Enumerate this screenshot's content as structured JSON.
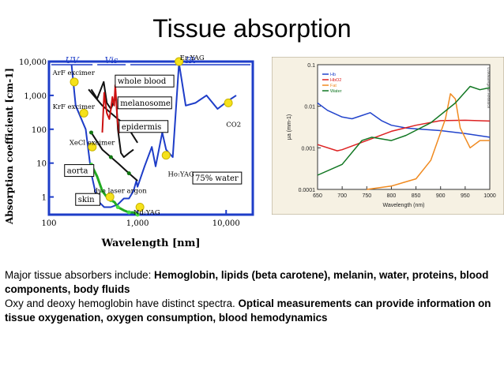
{
  "slide": {
    "title": "Tissue absorption",
    "p1_plain": "Major tissue absorbers include: ",
    "p1_bold": "Hemoglobin, lipids (beta carotene), melanin, water, proteins, blood components, body fluids",
    "p2_plain": "Oxy and deoxy hemoglobin have distinct spectra. ",
    "p2_bold": "Optical measurements can provide information on tissue oxygenation, oxygen consumption, blood hemodynamics"
  },
  "chart_data": [
    {
      "type": "line",
      "xlabel": "Wavelength [nm]",
      "ylabel": "Absorption coefficient [cm-1]",
      "xscale": "log",
      "yscale": "log",
      "xlim": [
        100,
        20000
      ],
      "ylim": [
        0.3,
        10000
      ],
      "xticks": [
        "100",
        "1,000",
        "10,000"
      ],
      "yticks": [
        "10,000",
        "1,000",
        "100",
        "10",
        "1"
      ],
      "regions": [
        "UV",
        "Vis",
        "IR"
      ],
      "labels": [
        "whole blood",
        "melanosome",
        "epidermis",
        "aorta",
        "skin",
        "75% water",
        "dye laser argon",
        "Ho:YAG",
        "Nd:YAG",
        "Er:YAG",
        "CO2",
        "ArF excimer",
        "KrF excimer",
        "XeCl excimer"
      ],
      "series": [
        {
          "name": "75% water",
          "color": "#1e3dc8",
          "x": [
            180,
            200,
            260,
            300,
            350,
            420,
            500,
            600,
            700,
            800,
            900,
            970,
            1000,
            1200,
            1450,
            1600,
            1900,
            2100,
            2500,
            2940,
            3500,
            4500,
            6000,
            8000,
            10600,
            13000
          ],
          "y": [
            8000,
            500,
            100,
            5,
            0.8,
            0.5,
            0.5,
            0.6,
            0.9,
            0.9,
            1.5,
            3,
            2,
            8,
            30,
            8,
            80,
            25,
            15,
            9000,
            500,
            600,
            1000,
            400,
            700,
            1000
          ]
        },
        {
          "name": "whole blood",
          "color": "#111111",
          "x": [
            300,
            350,
            415,
            450,
            500,
            545,
            575,
            600,
            650,
            700,
            800,
            900
          ],
          "y": [
            1500,
            800,
            2500,
            600,
            400,
            700,
            800,
            100,
            20,
            15,
            20,
            25
          ]
        },
        {
          "name": "melanosome",
          "color": "#111111",
          "x": [
            280,
            400,
            500,
            600,
            700,
            800,
            1000
          ],
          "y": [
            1500,
            500,
            300,
            200,
            150,
            100,
            40
          ]
        },
        {
          "name": "epidermis",
          "color": "#111111",
          "x": [
            300,
            400,
            500,
            600,
            800,
            1000
          ],
          "y": [
            80,
            25,
            15,
            10,
            5,
            3
          ]
        },
        {
          "name": "aorta",
          "color": "#cc1111",
          "x": [
            400,
            420,
            450,
            480,
            500,
            520,
            545,
            560,
            575,
            590,
            620,
            700
          ],
          "y": [
            80,
            1200,
            300,
            200,
            400,
            900,
            500,
            2000,
            700,
            200,
            80,
            100
          ]
        },
        {
          "name": "skin",
          "color": "#22aa22",
          "x": [
            300,
            350,
            400,
            450,
            500,
            550,
            600,
            700,
            800,
            900,
            1000
          ],
          "y": [
            9,
            4,
            1.5,
            1,
            0.8,
            0.7,
            0.5,
            0.4,
            0.35,
            0.35,
            0.3
          ]
        }
      ],
      "markers": [
        {
          "label": "ArF excimer",
          "x": 193,
          "y": 2500
        },
        {
          "label": "KrF excimer",
          "x": 248,
          "y": 300
        },
        {
          "label": "XeCl excimer",
          "x": 308,
          "y": 30
        },
        {
          "label": "argon",
          "x": 488,
          "y": 1
        },
        {
          "label": "Nd:YAG",
          "x": 1064,
          "y": 0.5
        },
        {
          "label": "Ho:YAG",
          "x": 2100,
          "y": 17
        },
        {
          "label": "Er:YAG",
          "x": 2940,
          "y": 10000
        },
        {
          "label": "CO2",
          "x": 10600,
          "y": 600
        }
      ]
    },
    {
      "type": "line",
      "xlabel": "Wavelength (nm)",
      "ylabel": "μa (mm-1)",
      "yscale": "log",
      "xlim": [
        650,
        1000
      ],
      "ylim": [
        0.0001,
        0.1
      ],
      "xticks": [
        "650",
        "700",
        "750",
        "800",
        "850",
        "900",
        "950",
        "1000"
      ],
      "yticks": [
        "0.1",
        "0.01",
        "0.001",
        "0.0001"
      ],
      "legend_position": "top-left",
      "watermark": "©2006Bergman Research",
      "series": [
        {
          "name": "Hb",
          "color": "#2244cc",
          "x": [
            650,
            670,
            700,
            720,
            740,
            757,
            780,
            800,
            830,
            860,
            900,
            950,
            1000
          ],
          "y": [
            0.012,
            0.008,
            0.0055,
            0.005,
            0.006,
            0.007,
            0.0045,
            0.0035,
            0.003,
            0.0028,
            0.0026,
            0.0022,
            0.0018
          ]
        },
        {
          "name": "HbO2",
          "color": "#dd2222",
          "x": [
            650,
            690,
            700,
            750,
            800,
            850,
            900,
            950,
            1000
          ],
          "y": [
            0.0012,
            0.00085,
            0.0009,
            0.0015,
            0.0025,
            0.0035,
            0.0045,
            0.0046,
            0.0044
          ]
        },
        {
          "name": "Fat",
          "color": "#f08a20",
          "x": [
            750,
            800,
            850,
            880,
            910,
            920,
            930,
            940,
            960,
            980,
            1000
          ],
          "y": [
            0.0001,
            0.00012,
            0.00018,
            0.0005,
            0.005,
            0.02,
            0.015,
            0.003,
            0.001,
            0.0015,
            0.0015
          ]
        },
        {
          "name": "Water",
          "color": "#117722",
          "x": [
            650,
            700,
            740,
            760,
            800,
            830,
            880,
            930,
            960,
            980,
            1000
          ],
          "y": [
            0.00022,
            0.0004,
            0.0015,
            0.0018,
            0.0015,
            0.002,
            0.004,
            0.012,
            0.03,
            0.025,
            0.028
          ]
        }
      ]
    }
  ]
}
